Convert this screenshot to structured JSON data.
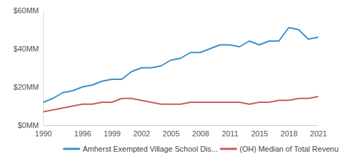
{
  "chart_data": {
    "type": "line",
    "categories": [
      "1990",
      null,
      null,
      null,
      "1996",
      null,
      null,
      "1999",
      null,
      null,
      "2002",
      null,
      null,
      "2005",
      null,
      null,
      "2008",
      null,
      null,
      "2011",
      null,
      null,
      "2015",
      null,
      null,
      "2018",
      null,
      null,
      "2021"
    ],
    "series": [
      {
        "name": "Amherst Exempted Village  School Dis...",
        "color": "#3b8fc9",
        "values": [
          12,
          14,
          17,
          18,
          20,
          21,
          23,
          24,
          24,
          28,
          30,
          30,
          31,
          34,
          35,
          38,
          38,
          40,
          42,
          42,
          41,
          44,
          42,
          44,
          44,
          51,
          50,
          45,
          46
        ]
      },
      {
        "name": "(OH) Median of Total Revenu",
        "color": "#c9585d",
        "values": [
          7,
          8,
          9,
          10,
          11,
          11,
          12,
          12,
          14,
          14,
          13,
          12,
          11,
          11,
          11,
          12,
          12,
          12,
          12,
          12,
          12,
          11,
          12,
          12,
          13,
          13,
          14,
          14,
          15
        ]
      }
    ],
    "ylim": [
      0,
      60
    ],
    "yticks": [
      {
        "value": 0,
        "label": "$0MM"
      },
      {
        "value": 20,
        "label": "$20MM"
      },
      {
        "value": 40,
        "label": "$40MM"
      },
      {
        "value": 60,
        "label": "$60MM"
      }
    ],
    "grid": false,
    "legend": "bottom"
  }
}
